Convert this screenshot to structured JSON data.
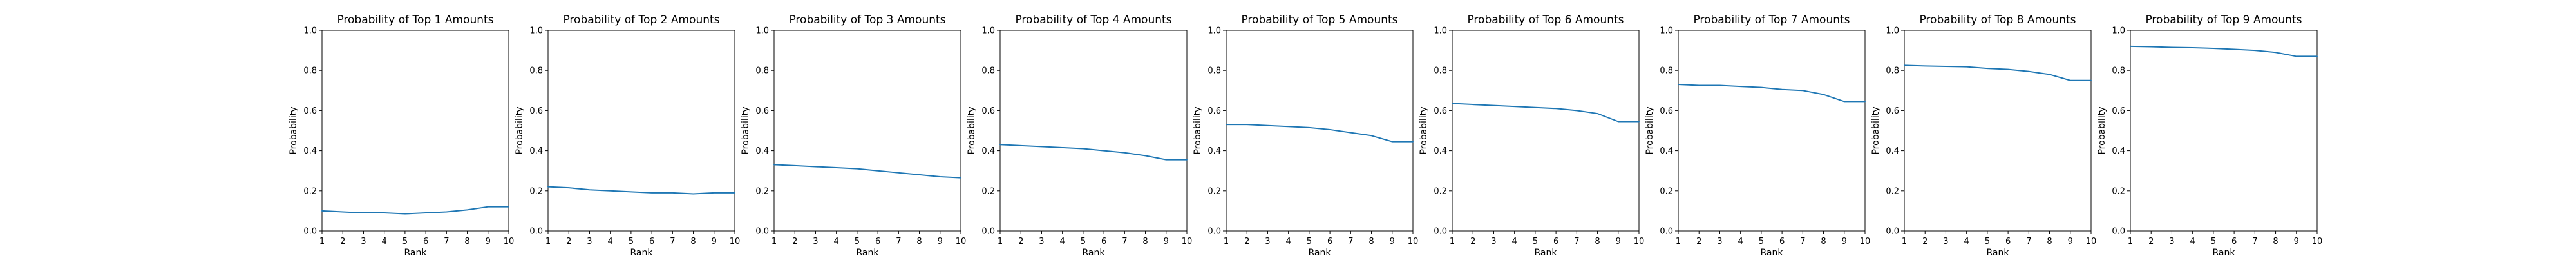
{
  "chart_data": [
    {
      "type": "line",
      "title": "Probability of Top 1 Amounts",
      "xlabel": "Rank",
      "ylabel": "Probability",
      "xlim": [
        1,
        10
      ],
      "ylim": [
        0.0,
        1.0
      ],
      "xticks": [
        1,
        2,
        3,
        4,
        5,
        6,
        7,
        8,
        9,
        10
      ],
      "yticks": [
        0.0,
        0.2,
        0.4,
        0.6,
        0.8,
        1.0
      ],
      "grid": false,
      "color": "#1f77b4",
      "x": [
        1,
        2,
        3,
        4,
        5,
        6,
        7,
        8,
        9,
        10
      ],
      "y": [
        0.1,
        0.095,
        0.09,
        0.09,
        0.085,
        0.09,
        0.095,
        0.105,
        0.12,
        0.12
      ]
    },
    {
      "type": "line",
      "title": "Probability of Top 2 Amounts",
      "xlabel": "Rank",
      "ylabel": "Probability",
      "xlim": [
        1,
        10
      ],
      "ylim": [
        0.0,
        1.0
      ],
      "xticks": [
        1,
        2,
        3,
        4,
        5,
        6,
        7,
        8,
        9,
        10
      ],
      "yticks": [
        0.0,
        0.2,
        0.4,
        0.6,
        0.8,
        1.0
      ],
      "grid": false,
      "color": "#1f77b4",
      "x": [
        1,
        2,
        3,
        4,
        5,
        6,
        7,
        8,
        9,
        10
      ],
      "y": [
        0.22,
        0.215,
        0.205,
        0.2,
        0.195,
        0.19,
        0.19,
        0.185,
        0.19,
        0.19
      ]
    },
    {
      "type": "line",
      "title": "Probability of Top 3 Amounts",
      "xlabel": "Rank",
      "ylabel": "Probability",
      "xlim": [
        1,
        10
      ],
      "ylim": [
        0.0,
        1.0
      ],
      "xticks": [
        1,
        2,
        3,
        4,
        5,
        6,
        7,
        8,
        9,
        10
      ],
      "yticks": [
        0.0,
        0.2,
        0.4,
        0.6,
        0.8,
        1.0
      ],
      "grid": false,
      "color": "#1f77b4",
      "x": [
        1,
        2,
        3,
        4,
        5,
        6,
        7,
        8,
        9,
        10
      ],
      "y": [
        0.33,
        0.325,
        0.32,
        0.315,
        0.31,
        0.3,
        0.29,
        0.28,
        0.27,
        0.265
      ]
    },
    {
      "type": "line",
      "title": "Probability of Top 4 Amounts",
      "xlabel": "Rank",
      "ylabel": "Probability",
      "xlim": [
        1,
        10
      ],
      "ylim": [
        0.0,
        1.0
      ],
      "xticks": [
        1,
        2,
        3,
        4,
        5,
        6,
        7,
        8,
        9,
        10
      ],
      "yticks": [
        0.0,
        0.2,
        0.4,
        0.6,
        0.8,
        1.0
      ],
      "grid": false,
      "color": "#1f77b4",
      "x": [
        1,
        2,
        3,
        4,
        5,
        6,
        7,
        8,
        9,
        10
      ],
      "y": [
        0.43,
        0.425,
        0.42,
        0.415,
        0.41,
        0.4,
        0.39,
        0.375,
        0.355,
        0.355
      ]
    },
    {
      "type": "line",
      "title": "Probability of Top 5 Amounts",
      "xlabel": "Rank",
      "ylabel": "Probability",
      "xlim": [
        1,
        10
      ],
      "ylim": [
        0.0,
        1.0
      ],
      "xticks": [
        1,
        2,
        3,
        4,
        5,
        6,
        7,
        8,
        9,
        10
      ],
      "yticks": [
        0.0,
        0.2,
        0.4,
        0.6,
        0.8,
        1.0
      ],
      "grid": false,
      "color": "#1f77b4",
      "x": [
        1,
        2,
        3,
        4,
        5,
        6,
        7,
        8,
        9,
        10
      ],
      "y": [
        0.53,
        0.53,
        0.525,
        0.52,
        0.515,
        0.505,
        0.49,
        0.475,
        0.445,
        0.445
      ]
    },
    {
      "type": "line",
      "title": "Probability of Top 6 Amounts",
      "xlabel": "Rank",
      "ylabel": "Probability",
      "xlim": [
        1,
        10
      ],
      "ylim": [
        0.0,
        1.0
      ],
      "xticks": [
        1,
        2,
        3,
        4,
        5,
        6,
        7,
        8,
        9,
        10
      ],
      "yticks": [
        0.0,
        0.2,
        0.4,
        0.6,
        0.8,
        1.0
      ],
      "grid": false,
      "color": "#1f77b4",
      "x": [
        1,
        2,
        3,
        4,
        5,
        6,
        7,
        8,
        9,
        10
      ],
      "y": [
        0.635,
        0.63,
        0.625,
        0.62,
        0.615,
        0.61,
        0.6,
        0.585,
        0.545,
        0.545
      ]
    },
    {
      "type": "line",
      "title": "Probability of Top 7 Amounts",
      "xlabel": "Rank",
      "ylabel": "Probability",
      "xlim": [
        1,
        10
      ],
      "ylim": [
        0.0,
        1.0
      ],
      "xticks": [
        1,
        2,
        3,
        4,
        5,
        6,
        7,
        8,
        9,
        10
      ],
      "yticks": [
        0.0,
        0.2,
        0.4,
        0.6,
        0.8,
        1.0
      ],
      "grid": false,
      "color": "#1f77b4",
      "x": [
        1,
        2,
        3,
        4,
        5,
        6,
        7,
        8,
        9,
        10
      ],
      "y": [
        0.73,
        0.725,
        0.725,
        0.72,
        0.715,
        0.705,
        0.7,
        0.68,
        0.645,
        0.645
      ]
    },
    {
      "type": "line",
      "title": "Probability of Top 8 Amounts",
      "xlabel": "Rank",
      "ylabel": "Probability",
      "xlim": [
        1,
        10
      ],
      "ylim": [
        0.0,
        1.0
      ],
      "xticks": [
        1,
        2,
        3,
        4,
        5,
        6,
        7,
        8,
        9,
        10
      ],
      "yticks": [
        0.0,
        0.2,
        0.4,
        0.6,
        0.8,
        1.0
      ],
      "grid": false,
      "color": "#1f77b4",
      "x": [
        1,
        2,
        3,
        4,
        5,
        6,
        7,
        8,
        9,
        10
      ],
      "y": [
        0.825,
        0.822,
        0.82,
        0.818,
        0.81,
        0.805,
        0.795,
        0.78,
        0.75,
        0.75
      ]
    },
    {
      "type": "line",
      "title": "Probability of Top 9 Amounts",
      "xlabel": "Rank",
      "ylabel": "Probability",
      "xlim": [
        1,
        10
      ],
      "ylim": [
        0.0,
        1.0
      ],
      "xticks": [
        1,
        2,
        3,
        4,
        5,
        6,
        7,
        8,
        9,
        10
      ],
      "yticks": [
        0.0,
        0.2,
        0.4,
        0.6,
        0.8,
        1.0
      ],
      "grid": false,
      "color": "#1f77b4",
      "x": [
        1,
        2,
        3,
        4,
        5,
        6,
        7,
        8,
        9,
        10
      ],
      "y": [
        0.92,
        0.918,
        0.915,
        0.913,
        0.91,
        0.905,
        0.9,
        0.89,
        0.87,
        0.87
      ]
    }
  ]
}
